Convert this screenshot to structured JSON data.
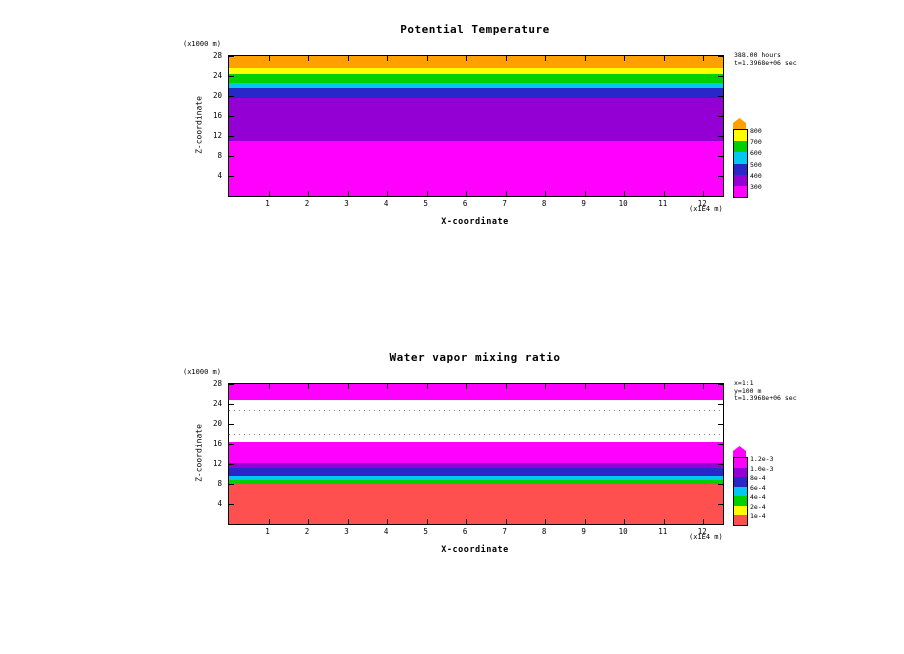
{
  "page": {
    "background": "#FFFFFF"
  },
  "chart_data": [
    {
      "type": "heatmap",
      "title": "Potential Temperature",
      "xlabel": "X-coordinate",
      "ylabel": "Z-coordinate",
      "x_unit_label": "(x1E4 m)",
      "y_unit_label": "(x1000 m)",
      "xlim": [
        0,
        12.5
      ],
      "ylim": [
        0,
        28
      ],
      "x_ticks": [
        1,
        2,
        3,
        4,
        5,
        6,
        7,
        8,
        9,
        10,
        11,
        12
      ],
      "y_ticks": [
        4,
        8,
        12,
        16,
        20,
        24,
        28
      ],
      "grid": false,
      "legend_position": "right-colorbar",
      "annotation_lines": [
        "388.00 hours",
        "t=1.3968e+06 sec"
      ],
      "bands": [
        {
          "z_from": 0,
          "z_to": 11,
          "color": "#FF00FF",
          "value": "300"
        },
        {
          "z_from": 11,
          "z_to": 19.6,
          "color": "#9400D3",
          "value": "400"
        },
        {
          "z_from": 19.6,
          "z_to": 21.6,
          "color": "#2828C8",
          "value": "500"
        },
        {
          "z_from": 21.6,
          "z_to": 22.6,
          "color": "#00C8F0",
          "value": "600"
        },
        {
          "z_from": 22.6,
          "z_to": 24.4,
          "color": "#00D000",
          "value": "700"
        },
        {
          "z_from": 24.4,
          "z_to": 25.6,
          "color": "#FFFF00",
          "value": "800"
        },
        {
          "z_from": 25.6,
          "z_to": 28,
          "color": "#FFA000",
          "value": ">800"
        }
      ],
      "dot_rows": [],
      "colorbar": {
        "arrow_color": "#FFA000",
        "segments": [
          {
            "color": "#FFFF00",
            "label": "800"
          },
          {
            "color": "#00D000",
            "label": "700"
          },
          {
            "color": "#00C8F0",
            "label": "600"
          },
          {
            "color": "#2828C8",
            "label": "500"
          },
          {
            "color": "#9400D3",
            "label": "400"
          },
          {
            "color": "#FF00FF",
            "label": "300"
          }
        ]
      }
    },
    {
      "type": "heatmap",
      "title": "Water vapor mixing ratio",
      "xlabel": "X-coordinate",
      "ylabel": "Z-coordinate",
      "x_unit_label": "(x1E4 m)",
      "y_unit_label": "(x1000 m)",
      "xlim": [
        0,
        12.5
      ],
      "ylim": [
        0,
        28
      ],
      "x_ticks": [
        1,
        2,
        3,
        4,
        5,
        6,
        7,
        8,
        9,
        10,
        11,
        12
      ],
      "y_ticks": [
        4,
        8,
        12,
        16,
        20,
        24,
        28
      ],
      "grid": false,
      "legend_position": "right-colorbar",
      "annotation_lines": [
        "x=1:1",
        "y=100 m",
        "t=1.3968e+06 sec"
      ],
      "bands": [
        {
          "z_from": 0,
          "z_to": 8,
          "color": "#FF5050",
          "value": "1e-4"
        },
        {
          "z_from": 8,
          "z_to": 8.8,
          "color": "#00D000",
          "value": "4e-4"
        },
        {
          "z_from": 8.8,
          "z_to": 9.6,
          "color": "#00C8F0",
          "value": "6e-4"
        },
        {
          "z_from": 9.6,
          "z_to": 11.2,
          "color": "#2828C8",
          "value": "8e-4"
        },
        {
          "z_from": 11.2,
          "z_to": 12.2,
          "color": "#9400D3",
          "value": "1.0e-3"
        },
        {
          "z_from": 12.2,
          "z_to": 16.5,
          "color": "#FF00FF",
          "value": "1.2e-3"
        },
        {
          "z_from": 16.5,
          "z_to": 24.8,
          "color": "#FFFFFF",
          "value": "0"
        },
        {
          "z_from": 24.8,
          "z_to": 28,
          "color": "#FF00FF",
          "value": "1.2e-3"
        }
      ],
      "dot_rows": [
        17.8,
        22.6
      ],
      "colorbar": {
        "arrow_color": "#FF00FF",
        "segments": [
          {
            "color": "#FF00FF",
            "label": "1.2e-3"
          },
          {
            "color": "#9400D3",
            "label": "1.0e-3"
          },
          {
            "color": "#2828C8",
            "label": "8e-4"
          },
          {
            "color": "#00C8F0",
            "label": "6e-4"
          },
          {
            "color": "#00D000",
            "label": "4e-4"
          },
          {
            "color": "#FFFF00",
            "label": "2e-4"
          },
          {
            "color": "#FF5050",
            "label": "1e-4"
          }
        ]
      }
    }
  ]
}
